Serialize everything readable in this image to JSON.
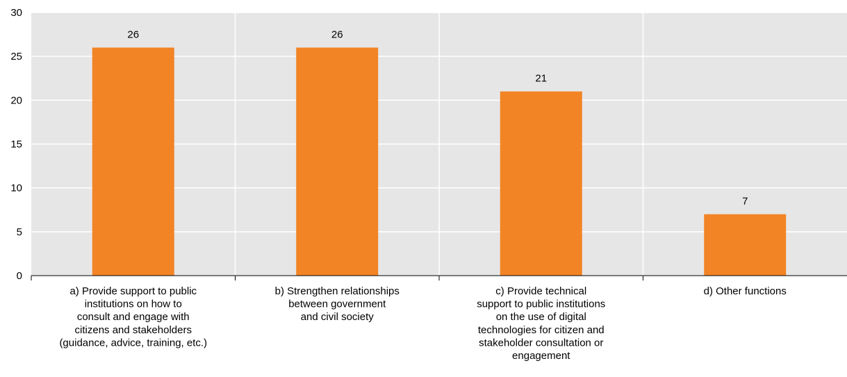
{
  "chart_data": {
    "type": "bar",
    "categories": [
      [
        "a) Provide support to public",
        "institutions on how to",
        "consult and engage with",
        "citizens and stakeholders",
        "(guidance, advice, training, etc.)"
      ],
      [
        "b) Strengthen relationships",
        "between government",
        "and civil society"
      ],
      [
        "c) Provide technical",
        "support to public institutions",
        "on the use of digital",
        "technologies for citizen and",
        "stakeholder consultation or",
        "engagement"
      ],
      [
        "d) Other functions"
      ]
    ],
    "values": [
      26,
      26,
      21,
      7
    ],
    "data_labels": [
      "26",
      "26",
      "21",
      "7"
    ],
    "y_ticks": [
      "0",
      "5",
      "10",
      "15",
      "20",
      "25",
      "30"
    ],
    "ylim": [
      0,
      30
    ],
    "grid": true,
    "colors": {
      "bar": "#F28425",
      "plot_bg": "#E6E6E6",
      "grid": "#FFFFFF",
      "axis": "#000000"
    }
  }
}
